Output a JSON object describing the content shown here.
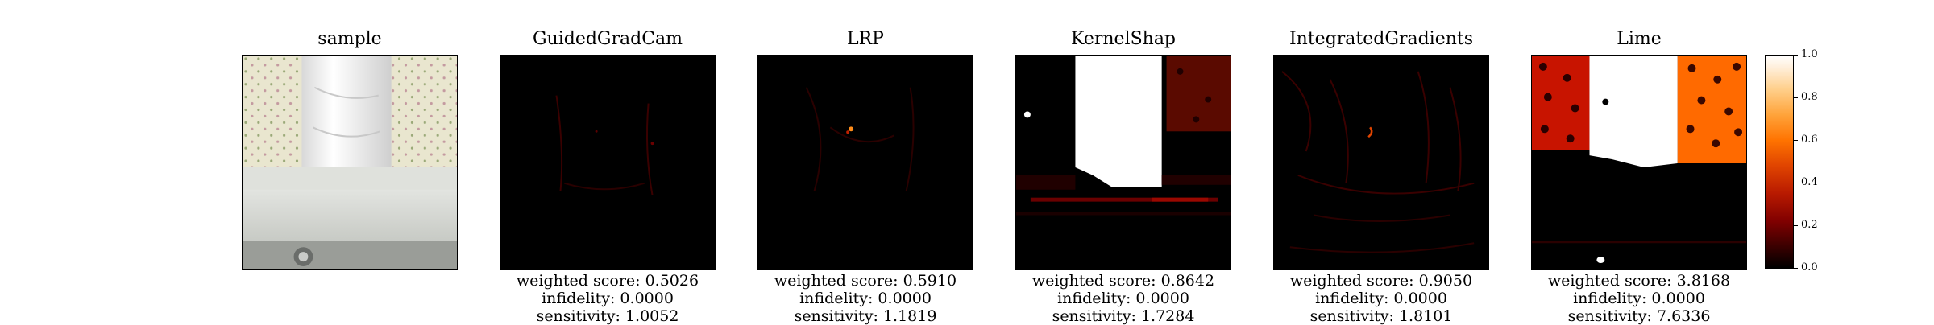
{
  "panels": [
    {
      "title": "sample",
      "weighted_score": "",
      "infidelity": "",
      "sensitivity": ""
    },
    {
      "title": "GuidedGradCam",
      "weighted_score": "weighted score: 0.5026",
      "infidelity": "infidelity: 0.0000",
      "sensitivity": "sensitivity: 1.0052"
    },
    {
      "title": "LRP",
      "weighted_score": "weighted score: 0.5910",
      "infidelity": "infidelity: 0.0000",
      "sensitivity": "sensitivity: 1.1819"
    },
    {
      "title": "KernelShap",
      "weighted_score": "weighted score: 0.8642",
      "infidelity": "infidelity: 0.0000",
      "sensitivity": "sensitivity: 1.7284"
    },
    {
      "title": "IntegratedGradients",
      "weighted_score": "weighted score: 0.9050",
      "infidelity": "infidelity: 0.0000",
      "sensitivity": "sensitivity: 1.8101"
    },
    {
      "title": "Lime",
      "weighted_score": "weighted score: 3.8168",
      "infidelity": "infidelity: 0.0000",
      "sensitivity": "sensitivity: 7.6336"
    }
  ],
  "colorbar": {
    "ticks": [
      "1.0",
      "0.8",
      "0.6",
      "0.4",
      "0.2",
      "0.0"
    ],
    "colormap": [
      "#000000",
      "#800000",
      "#e04400",
      "#ff7300",
      "#ffcf8a",
      "#ffffff"
    ]
  }
}
